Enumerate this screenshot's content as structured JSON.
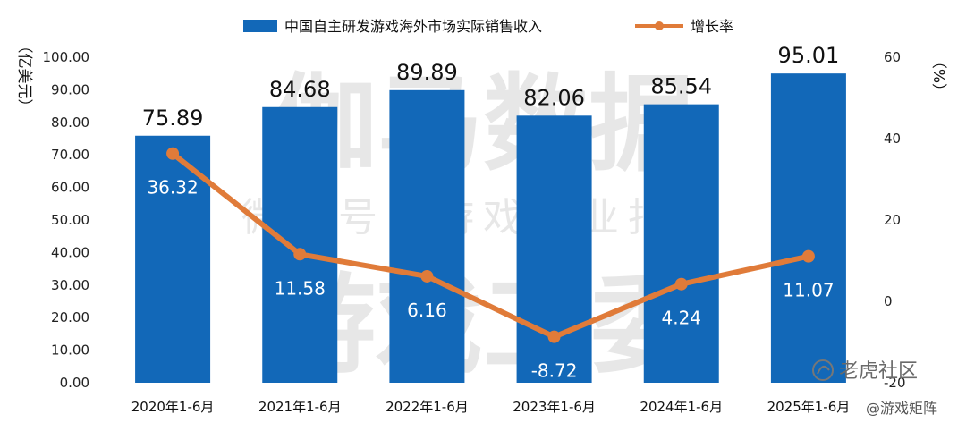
{
  "chart_data": {
    "type": "bar+line",
    "categories": [
      "2020年1-6月",
      "2021年1-6月",
      "2022年1-6月",
      "2023年1-6月",
      "2024年1-6月",
      "2025年1-6月"
    ],
    "series": [
      {
        "name": "中国自主研发游戏海外市场实际销售收入",
        "type": "bar",
        "axis": "left",
        "values": [
          75.89,
          84.68,
          89.89,
          82.06,
          85.54,
          95.01
        ],
        "labels": [
          "75.89",
          "84.68",
          "89.89",
          "82.06",
          "85.54",
          "95.01"
        ],
        "color": "#1268b8"
      },
      {
        "name": "增长率",
        "type": "line",
        "axis": "right",
        "values": [
          36.32,
          11.58,
          6.16,
          -8.72,
          4.24,
          11.07
        ],
        "labels": [
          "36.32",
          "11.58",
          "6.16",
          "-8.72",
          "4.24",
          "11.07"
        ],
        "color": "#e07b39"
      }
    ],
    "left_axis": {
      "unit_label": "（亿美元）",
      "ylim": [
        0,
        100
      ],
      "ticks": [
        0,
        10,
        20,
        30,
        40,
        50,
        60,
        70,
        80,
        90,
        100
      ],
      "tick_labels": [
        "0.00",
        "10.00",
        "20.00",
        "30.00",
        "40.00",
        "50.00",
        "60.00",
        "70.00",
        "80.00",
        "90.00",
        "100.00"
      ]
    },
    "right_axis": {
      "unit_label": "（%）",
      "ylim": [
        -20,
        60
      ],
      "ticks": [
        -20,
        0,
        20,
        40,
        60
      ],
      "tick_labels": [
        "-20",
        "0",
        "20",
        "40",
        "60"
      ]
    },
    "grid": false,
    "legend_position": "top"
  },
  "watermarks": {
    "big_text": "伽马数据",
    "sub_text": "微信号：游戏产业报告",
    "bottom_text": "游戏工委"
  },
  "corner_watermarks": {
    "top": "老虎社区",
    "bottom": "@游戏矩阵"
  }
}
